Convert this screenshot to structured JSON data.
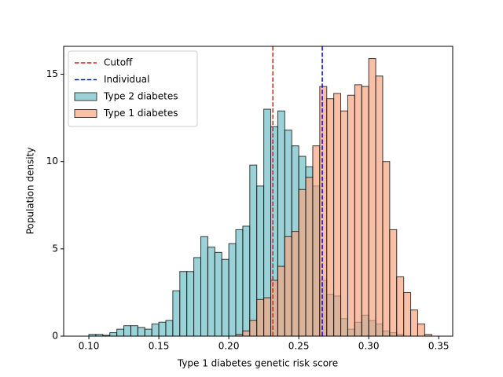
{
  "chart_data": {
    "type": "histogram",
    "xlabel": "Type 1 diabetes genetic risk score",
    "ylabel": "Population density",
    "bins": [
      0.095,
      0.1,
      0.105,
      0.11,
      0.115,
      0.12,
      0.125,
      0.13,
      0.135,
      0.14,
      0.145,
      0.15,
      0.155,
      0.16,
      0.165,
      0.17,
      0.175,
      0.18,
      0.185,
      0.19,
      0.195,
      0.2,
      0.205,
      0.21,
      0.215,
      0.22,
      0.225,
      0.23,
      0.235,
      0.24,
      0.245,
      0.25,
      0.255,
      0.26,
      0.265,
      0.27,
      0.275,
      0.28,
      0.285,
      0.29,
      0.295,
      0.3,
      0.305,
      0.31,
      0.315,
      0.32,
      0.325,
      0.33,
      0.335,
      0.34,
      0.345
    ],
    "series": [
      {
        "name": "Type 2 diabetes",
        "color": "#6fbfc8",
        "values": [
          0,
          0.1,
          0.1,
          0.05,
          0.2,
          0.4,
          0.6,
          0.6,
          0.5,
          0.4,
          0.7,
          0.8,
          0.9,
          2.6,
          3.7,
          3.7,
          4.5,
          5.7,
          5.1,
          4.8,
          4.4,
          5.3,
          6.1,
          6.3,
          9.8,
          8.6,
          13.0,
          12.0,
          12.9,
          11.8,
          10.9,
          10.3,
          9.7,
          8.6,
          3.2,
          2.4,
          2.3,
          1.0,
          0.4,
          0.8,
          1.2,
          0.9,
          0.7,
          0.3,
          0.2,
          0.1,
          0,
          0,
          0,
          0
        ]
      },
      {
        "name": "Type 1 diabetes",
        "color": "#f4a582",
        "values": [
          0,
          0,
          0,
          0,
          0,
          0,
          0,
          0,
          0,
          0,
          0,
          0,
          0,
          0,
          0,
          0,
          0,
          0,
          0,
          0,
          0,
          0,
          0.1,
          0.3,
          0.9,
          2.1,
          2.2,
          3.2,
          4.0,
          5.7,
          6.0,
          8.4,
          9.1,
          10.9,
          14.3,
          13.6,
          13.9,
          12.9,
          13.8,
          14.4,
          14.3,
          15.9,
          14.9,
          10.0,
          6.1,
          3.4,
          2.5,
          1.5,
          0.7,
          0.1
        ]
      }
    ],
    "lines": [
      {
        "name": "Cutoff",
        "color": "#e41a1c",
        "x": 0.2315
      },
      {
        "name": "Individual",
        "color": "#0000ff",
        "x": 0.2668
      }
    ],
    "xlim": [
      0.082,
      0.36
    ],
    "ylim": [
      0,
      16.6
    ],
    "xticks": [
      {
        "value": 0.1,
        "label": "0.10"
      },
      0.15,
      {
        "value": 0.2,
        "label": "0.20"
      },
      0.25,
      {
        "value": 0.3,
        "label": "0.30"
      },
      0.35
    ],
    "yticks": [
      0,
      5,
      10,
      15
    ],
    "legend": "upper left"
  }
}
